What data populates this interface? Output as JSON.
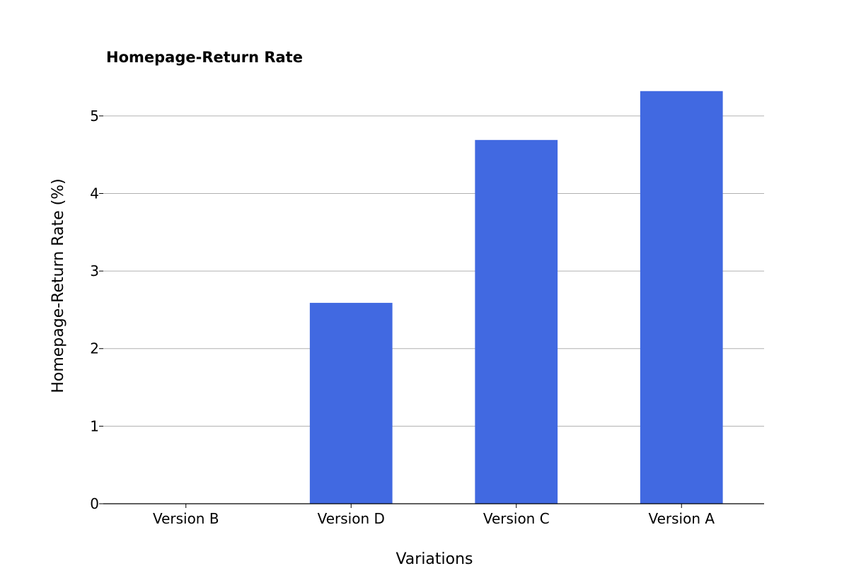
{
  "chart_data": {
    "type": "bar",
    "title": "Homepage-Return Rate",
    "xlabel": "Variations",
    "ylabel": "Homepage-Return Rate (%)",
    "categories": [
      "Version B",
      "Version D",
      "Version C",
      "Version A"
    ],
    "values": [
      0,
      2.59,
      4.69,
      5.32
    ],
    "ylim": [
      0,
      5.4
    ],
    "yticks": [
      "0",
      "1",
      "2",
      "3",
      "4",
      "5"
    ],
    "grid": "horizontal",
    "bar_color": "#4169e1",
    "grid_color": "#b0b0b0"
  }
}
